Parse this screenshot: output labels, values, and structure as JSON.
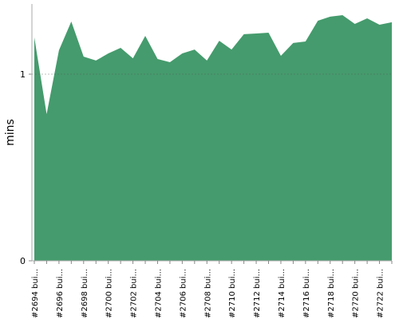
{
  "chart_data": {
    "type": "area",
    "y_label": "mins",
    "color": "#459b6d",
    "categories": [
      "#2694 bui...",
      null,
      "#2696 bui...",
      null,
      "#2698 bui...",
      null,
      "#2700 bui...",
      null,
      "#2702 bui...",
      null,
      "#2704 bui...",
      null,
      "#2706 bui...",
      null,
      "#2708 bui...",
      null,
      "#2710 bui...",
      null,
      "#2712 bui...",
      null,
      "#2714 bui...",
      null,
      "#2716 bui...",
      null,
      "#2718 bui...",
      null,
      "#2720 bui...",
      null,
      "#2722 bui...",
      null
    ],
    "values": [
      1.197,
      0.786,
      1.128,
      1.282,
      1.094,
      1.073,
      1.111,
      1.141,
      1.085,
      1.205,
      1.081,
      1.064,
      1.111,
      1.132,
      1.073,
      1.179,
      1.132,
      1.214,
      1.218,
      1.222,
      1.098,
      1.167,
      1.175,
      1.286,
      1.308,
      1.316,
      1.269,
      1.299,
      1.265,
      1.278
    ],
    "ylim": [
      0,
      1.376
    ],
    "yticks": [
      0,
      1
    ],
    "grid": true
  }
}
